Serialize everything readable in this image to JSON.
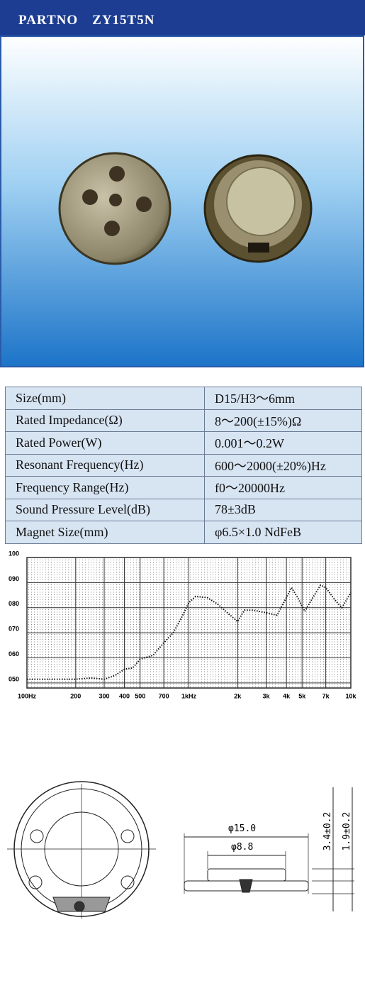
{
  "header": {
    "title": "PARTNO　ZY15T5N"
  },
  "table": {
    "rows": [
      [
        "Size(mm)",
        "D15/H3～6mm"
      ],
      [
        "Rated Impedance(Ω)",
        "8～200(±15%)Ω"
      ],
      [
        "Rated Power(W)",
        "0.001～0.2W"
      ],
      [
        "Resonant Frequency(Hz)",
        "600～2000(±20%)Hz"
      ],
      [
        "Frequency Range(Hz)",
        "f0～20000Hz"
      ],
      [
        "Sound Pressure Level(dB)",
        "78±3dB"
      ],
      [
        "Magnet Size(mm)",
        "φ6.5×1.0 NdFeB"
      ]
    ]
  },
  "chart_data": {
    "type": "line",
    "xscale": "log",
    "grid": true,
    "color": "#111111",
    "x": [
      100,
      150,
      200,
      250,
      300,
      350,
      400,
      450,
      500,
      600,
      700,
      800,
      900,
      1000,
      1100,
      1300,
      1500,
      1800,
      2000,
      2200,
      2500,
      3000,
      3500,
      4000,
      4300,
      4700,
      5200,
      5700,
      6500,
      7000,
      8000,
      8800,
      10000
    ],
    "values": [
      51.5,
      51.5,
      51.5,
      52,
      51.5,
      53,
      55.5,
      56,
      59.5,
      61,
      66,
      70,
      76,
      82,
      84.5,
      84,
      81.5,
      77,
      74.5,
      79,
      79,
      78,
      77,
      84,
      88,
      84,
      78.5,
      83,
      89,
      88,
      83,
      80,
      86
    ],
    "xlim": [
      100,
      10000
    ],
    "xticks": [
      {
        "value": 100,
        "label": "100Hz"
      },
      200,
      300,
      400,
      500,
      700,
      {
        "value": 1000,
        "label": "1kHz"
      },
      {
        "value": 2000,
        "label": "2k"
      },
      {
        "value": 3000,
        "label": "3k"
      },
      {
        "value": 4000,
        "label": "4k"
      },
      {
        "value": 5000,
        "label": "5k"
      },
      {
        "value": 7000,
        "label": "7k"
      },
      {
        "value": 10000,
        "label": "10k"
      }
    ],
    "ylim": [
      48,
      100
    ],
    "yticks": [
      {
        "value": 50,
        "label": "050"
      },
      {
        "value": 60,
        "label": "060"
      },
      {
        "value": 70,
        "label": "070"
      },
      {
        "value": 80,
        "label": "080"
      },
      {
        "value": 90,
        "label": "090"
      },
      100
    ]
  },
  "drawing": {
    "outer_diameter": "φ15.0",
    "inner_diameter": "φ8.8",
    "height_total": "3.4±0.2",
    "height_body": "1.9±0.2"
  }
}
